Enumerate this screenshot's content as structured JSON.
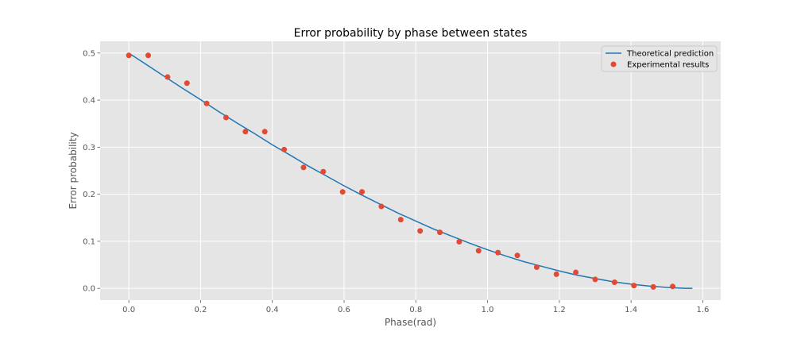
{
  "chart_data": {
    "type": "line",
    "title": "Error probability by phase between states",
    "xlabel": "Phase(rad)",
    "ylabel": "Error probability",
    "xlim": [
      -0.08,
      1.65
    ],
    "ylim": [
      -0.025,
      0.525
    ],
    "xticks": [
      0.0,
      0.2,
      0.4,
      0.6,
      0.8,
      1.0,
      1.2,
      1.4,
      1.6
    ],
    "xtick_labels": [
      "0.0",
      "0.2",
      "0.4",
      "0.6",
      "0.8",
      "1.0",
      "1.2",
      "1.4",
      "1.6"
    ],
    "yticks": [
      0.0,
      0.1,
      0.2,
      0.3,
      0.4,
      0.5
    ],
    "ytick_labels": [
      "0.0",
      "0.1",
      "0.2",
      "0.3",
      "0.4",
      "0.5"
    ],
    "grid": true,
    "legend_position": "top-right",
    "series": [
      {
        "name": "Theoretical prediction",
        "kind": "line",
        "color": "#1f77b4",
        "x": [
          0.0,
          0.05,
          0.1,
          0.15,
          0.2,
          0.25,
          0.3,
          0.35,
          0.4,
          0.45,
          0.5,
          0.55,
          0.6,
          0.65,
          0.7,
          0.75,
          0.8,
          0.85,
          0.9,
          0.95,
          1.0,
          1.05,
          1.1,
          1.15,
          1.2,
          1.25,
          1.3,
          1.35,
          1.4,
          1.45,
          1.5,
          1.55,
          1.571
        ],
        "y": [
          0.5,
          0.475,
          0.45,
          0.425,
          0.401,
          0.376,
          0.352,
          0.329,
          0.305,
          0.283,
          0.26,
          0.239,
          0.218,
          0.198,
          0.179,
          0.16,
          0.143,
          0.126,
          0.111,
          0.096,
          0.082,
          0.069,
          0.057,
          0.047,
          0.037,
          0.028,
          0.021,
          0.014,
          0.009,
          0.005,
          0.002,
          0.0,
          0.0
        ]
      },
      {
        "name": "Experimental results",
        "kind": "scatter",
        "color": "#e24a33",
        "x": [
          0.0,
          0.054,
          0.108,
          0.162,
          0.217,
          0.271,
          0.325,
          0.379,
          0.433,
          0.487,
          0.542,
          0.596,
          0.65,
          0.704,
          0.758,
          0.812,
          0.867,
          0.921,
          0.975,
          1.029,
          1.083,
          1.137,
          1.192,
          1.246,
          1.3,
          1.354,
          1.408,
          1.462,
          1.516
        ],
        "y": [
          0.495,
          0.495,
          0.449,
          0.436,
          0.393,
          0.363,
          0.333,
          0.333,
          0.295,
          0.257,
          0.248,
          0.205,
          0.205,
          0.174,
          0.146,
          0.122,
          0.119,
          0.099,
          0.08,
          0.076,
          0.07,
          0.045,
          0.03,
          0.034,
          0.019,
          0.013,
          0.006,
          0.003,
          0.004
        ]
      }
    ]
  }
}
